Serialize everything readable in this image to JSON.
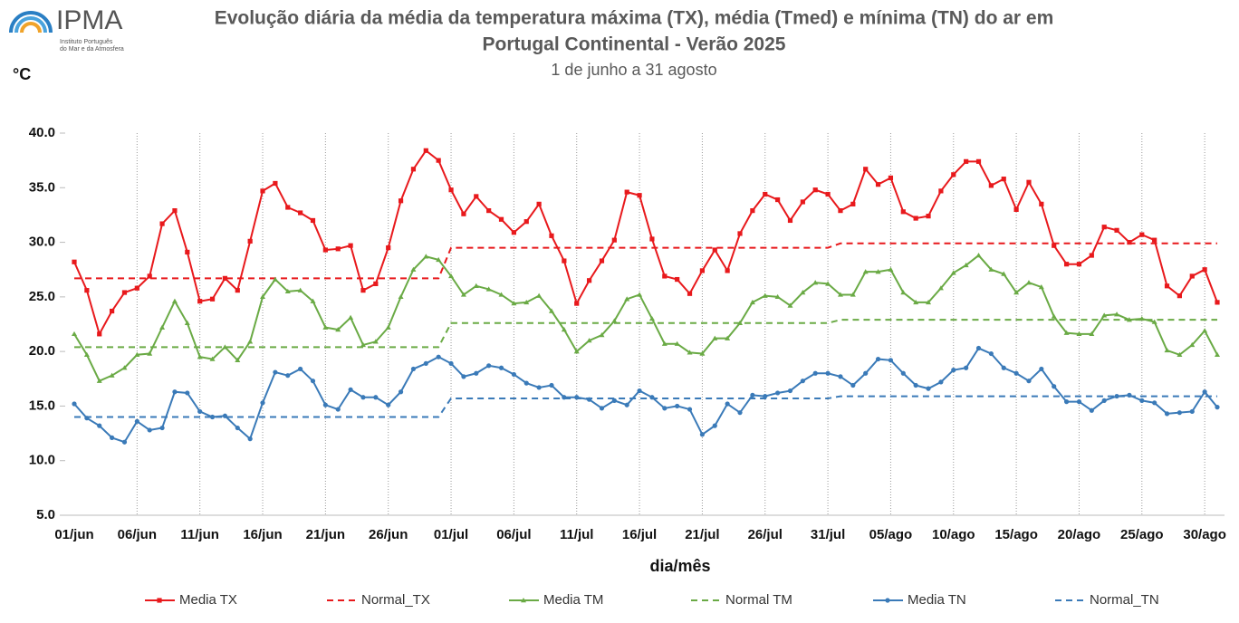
{
  "logo": {
    "name": "IPMA",
    "subtitle": [
      "Instituto Português",
      "do Mar e da Atmosfera"
    ]
  },
  "chart_data": {
    "type": "line",
    "title": [
      "Evolução diária da média da temperatura máxima (TX), média (Tmed) e mínima (TN) do ar em",
      "Portugal Continental - Verão 2025"
    ],
    "subtitle": "1 de junho a 31 agosto",
    "y_label": "°C",
    "x_label": "dia/mês",
    "grid": true,
    "categories": [
      "01/jun",
      null,
      null,
      null,
      null,
      "06/jun",
      null,
      null,
      null,
      null,
      "11/jun",
      null,
      null,
      null,
      null,
      "16/jun",
      null,
      null,
      null,
      null,
      "21/jun",
      null,
      null,
      null,
      null,
      "26/jun",
      null,
      null,
      null,
      null,
      "01/jul",
      null,
      null,
      null,
      null,
      "06/jul",
      null,
      null,
      null,
      null,
      "11/jul",
      null,
      null,
      null,
      null,
      "16/jul",
      null,
      null,
      null,
      null,
      "21/jul",
      null,
      null,
      null,
      null,
      "26/jul",
      null,
      null,
      null,
      null,
      "31/jul",
      null,
      null,
      null,
      null,
      "05/ago",
      null,
      null,
      null,
      null,
      "10/ago",
      null,
      null,
      null,
      null,
      "15/ago",
      null,
      null,
      null,
      null,
      "20/ago",
      null,
      null,
      null,
      null,
      "25/ago",
      null,
      null,
      null,
      null,
      "30/ago",
      null
    ],
    "ylim": [
      5,
      40
    ],
    "yticks": [
      {
        "value": 5,
        "label": "5.0"
      },
      {
        "value": 10,
        "label": "10.0"
      },
      {
        "value": 15,
        "label": "15.0"
      },
      {
        "value": 20,
        "label": "20.0"
      },
      {
        "value": 25,
        "label": "25.0"
      },
      {
        "value": 30,
        "label": "30.0"
      },
      {
        "value": 35,
        "label": "35.0"
      },
      {
        "value": 40,
        "label": "40.0"
      }
    ],
    "series": [
      {
        "name": "Media TX",
        "color": "#e8191c",
        "marker": "square",
        "dashed": false,
        "values": [
          28.2,
          25.6,
          21.6,
          23.7,
          25.4,
          25.8,
          26.9,
          31.7,
          32.9,
          29.1,
          24.6,
          24.8,
          26.7,
          25.6,
          30.1,
          34.7,
          35.4,
          33.2,
          32.7,
          32.0,
          29.3,
          29.4,
          29.7,
          25.6,
          26.2,
          29.5,
          33.8,
          36.7,
          38.4,
          37.5,
          34.8,
          32.6,
          34.2,
          32.9,
          32.1,
          30.9,
          31.9,
          33.5,
          30.6,
          28.3,
          24.4,
          26.5,
          28.3,
          30.2,
          34.6,
          34.3,
          30.3,
          26.9,
          26.6,
          25.3,
          27.4,
          29.3,
          27.4,
          30.8,
          32.9,
          34.4,
          33.9,
          32.0,
          33.7,
          34.8,
          34.4,
          32.9,
          33.5,
          36.7,
          35.3,
          35.9,
          32.8,
          32.2,
          32.4,
          34.7,
          36.2,
          37.4,
          37.4,
          35.2,
          35.8,
          33.0,
          35.5,
          33.5,
          29.7,
          28.0,
          28.0,
          28.8,
          31.4,
          31.1,
          30.0,
          30.7,
          30.2,
          26.0,
          25.1,
          26.9,
          27.5,
          24.5
        ]
      },
      {
        "name": "Normal_TX",
        "color": "#e8191c",
        "marker": "none",
        "dashed": true,
        "values": [
          26.7,
          26.7,
          26.7,
          26.7,
          26.7,
          26.7,
          26.7,
          26.7,
          26.7,
          26.7,
          26.7,
          26.7,
          26.7,
          26.7,
          26.7,
          26.7,
          26.7,
          26.7,
          26.7,
          26.7,
          26.7,
          26.7,
          26.7,
          26.7,
          26.7,
          26.7,
          26.7,
          26.7,
          26.7,
          26.7,
          29.5,
          29.5,
          29.5,
          29.5,
          29.5,
          29.5,
          29.5,
          29.5,
          29.5,
          29.5,
          29.5,
          29.5,
          29.5,
          29.5,
          29.5,
          29.5,
          29.5,
          29.5,
          29.5,
          29.5,
          29.5,
          29.5,
          29.5,
          29.5,
          29.5,
          29.5,
          29.5,
          29.5,
          29.5,
          29.5,
          29.5,
          29.9,
          29.9,
          29.9,
          29.9,
          29.9,
          29.9,
          29.9,
          29.9,
          29.9,
          29.9,
          29.9,
          29.9,
          29.9,
          29.9,
          29.9,
          29.9,
          29.9,
          29.9,
          29.9,
          29.9,
          29.9,
          29.9,
          29.9,
          29.9,
          29.9,
          29.9,
          29.9,
          29.9,
          29.9,
          29.9,
          29.9
        ]
      },
      {
        "name": "Media TM",
        "color": "#6aaa45",
        "marker": "triangle",
        "dashed": false,
        "values": [
          21.6,
          19.7,
          17.3,
          17.8,
          18.5,
          19.7,
          19.8,
          22.2,
          24.6,
          22.6,
          19.5,
          19.3,
          20.4,
          19.2,
          20.9,
          25.0,
          26.6,
          25.5,
          25.6,
          24.6,
          22.2,
          22.0,
          23.1,
          20.6,
          20.9,
          22.2,
          25.0,
          27.5,
          28.7,
          28.4,
          26.9,
          25.2,
          26.0,
          25.7,
          25.2,
          24.4,
          24.5,
          25.1,
          23.7,
          22.0,
          20.0,
          21.0,
          21.5,
          22.8,
          24.8,
          25.2,
          23.0,
          20.7,
          20.7,
          19.9,
          19.8,
          21.2,
          21.2,
          22.6,
          24.5,
          25.1,
          25.0,
          24.2,
          25.4,
          26.3,
          26.2,
          25.2,
          25.2,
          27.3,
          27.3,
          27.5,
          25.4,
          24.5,
          24.5,
          25.8,
          27.2,
          27.9,
          28.8,
          27.5,
          27.1,
          25.4,
          26.3,
          25.9,
          23.2,
          21.7,
          21.6,
          21.6,
          23.3,
          23.4,
          22.9,
          23.0,
          22.7,
          20.1,
          19.7,
          20.6,
          21.9,
          19.7
        ]
      },
      {
        "name": "Normal TM",
        "color": "#6aaa45",
        "marker": "none",
        "dashed": true,
        "values": [
          20.4,
          20.4,
          20.4,
          20.4,
          20.4,
          20.4,
          20.4,
          20.4,
          20.4,
          20.4,
          20.4,
          20.4,
          20.4,
          20.4,
          20.4,
          20.4,
          20.4,
          20.4,
          20.4,
          20.4,
          20.4,
          20.4,
          20.4,
          20.4,
          20.4,
          20.4,
          20.4,
          20.4,
          20.4,
          20.4,
          22.6,
          22.6,
          22.6,
          22.6,
          22.6,
          22.6,
          22.6,
          22.6,
          22.6,
          22.6,
          22.6,
          22.6,
          22.6,
          22.6,
          22.6,
          22.6,
          22.6,
          22.6,
          22.6,
          22.6,
          22.6,
          22.6,
          22.6,
          22.6,
          22.6,
          22.6,
          22.6,
          22.6,
          22.6,
          22.6,
          22.6,
          22.9,
          22.9,
          22.9,
          22.9,
          22.9,
          22.9,
          22.9,
          22.9,
          22.9,
          22.9,
          22.9,
          22.9,
          22.9,
          22.9,
          22.9,
          22.9,
          22.9,
          22.9,
          22.9,
          22.9,
          22.9,
          22.9,
          22.9,
          22.9,
          22.9,
          22.9,
          22.9,
          22.9,
          22.9,
          22.9,
          22.9
        ]
      },
      {
        "name": "Media TN",
        "color": "#3a7ab8",
        "marker": "circle",
        "dashed": false,
        "values": [
          15.2,
          13.9,
          13.2,
          12.1,
          11.7,
          13.6,
          12.8,
          13.0,
          16.3,
          16.2,
          14.5,
          14.0,
          14.1,
          13.0,
          12.0,
          15.3,
          18.1,
          17.8,
          18.4,
          17.3,
          15.1,
          14.7,
          16.5,
          15.8,
          15.8,
          15.1,
          16.3,
          18.4,
          18.9,
          19.5,
          18.9,
          17.7,
          18.0,
          18.7,
          18.5,
          17.9,
          17.1,
          16.7,
          16.9,
          15.8,
          15.8,
          15.6,
          14.8,
          15.5,
          15.1,
          16.4,
          15.8,
          14.8,
          15.0,
          14.7,
          12.4,
          13.2,
          15.2,
          14.4,
          16.0,
          15.9,
          16.2,
          16.4,
          17.3,
          18.0,
          18.0,
          17.7,
          16.9,
          18.0,
          19.3,
          19.2,
          18.0,
          16.9,
          16.6,
          17.2,
          18.3,
          18.5,
          20.3,
          19.8,
          18.5,
          18.0,
          17.3,
          18.4,
          16.8,
          15.4,
          15.4,
          14.6,
          15.5,
          15.9,
          16.0,
          15.5,
          15.3,
          14.3,
          14.4,
          14.5,
          16.3,
          14.9
        ]
      },
      {
        "name": "Normal_TN",
        "color": "#3a7ab8",
        "marker": "none",
        "dashed": true,
        "values": [
          14.0,
          14.0,
          14.0,
          14.0,
          14.0,
          14.0,
          14.0,
          14.0,
          14.0,
          14.0,
          14.0,
          14.0,
          14.0,
          14.0,
          14.0,
          14.0,
          14.0,
          14.0,
          14.0,
          14.0,
          14.0,
          14.0,
          14.0,
          14.0,
          14.0,
          14.0,
          14.0,
          14.0,
          14.0,
          14.0,
          15.7,
          15.7,
          15.7,
          15.7,
          15.7,
          15.7,
          15.7,
          15.7,
          15.7,
          15.7,
          15.7,
          15.7,
          15.7,
          15.7,
          15.7,
          15.7,
          15.7,
          15.7,
          15.7,
          15.7,
          15.7,
          15.7,
          15.7,
          15.7,
          15.7,
          15.7,
          15.7,
          15.7,
          15.7,
          15.7,
          15.7,
          15.9,
          15.9,
          15.9,
          15.9,
          15.9,
          15.9,
          15.9,
          15.9,
          15.9,
          15.9,
          15.9,
          15.9,
          15.9,
          15.9,
          15.9,
          15.9,
          15.9,
          15.9,
          15.9,
          15.9,
          15.9,
          15.9,
          15.9,
          15.9,
          15.9,
          15.9,
          15.9,
          15.9,
          15.9,
          15.9,
          15.9
        ]
      }
    ]
  }
}
